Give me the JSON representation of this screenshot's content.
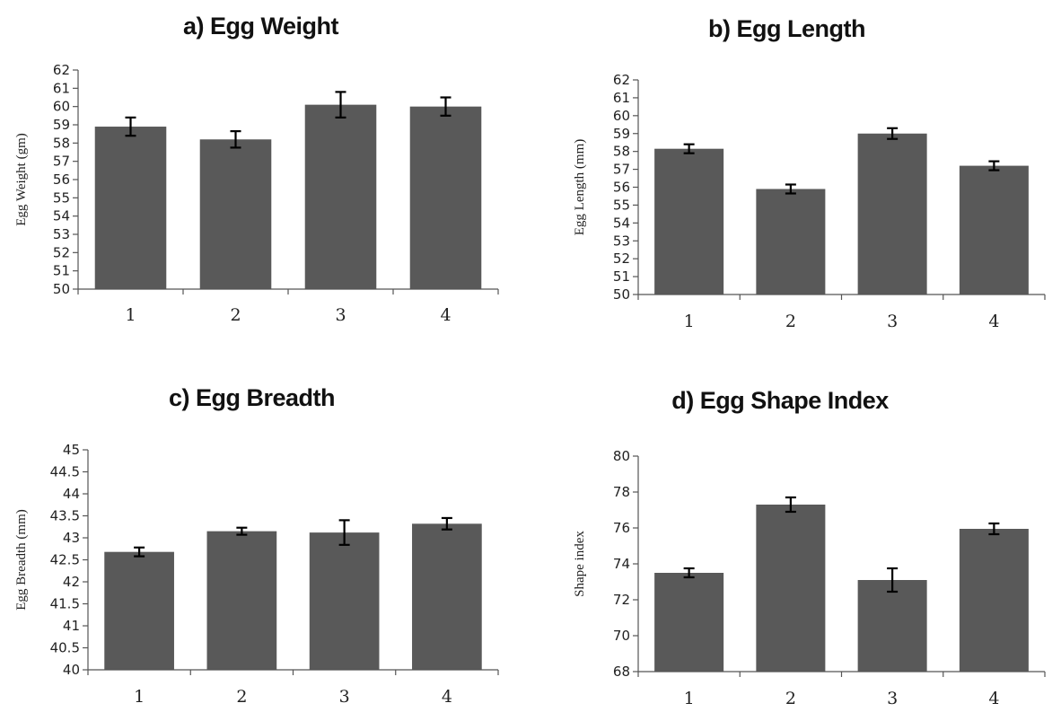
{
  "chart_data": [
    {
      "type": "bar",
      "title": "a) Egg Weight",
      "xlabel": "",
      "ylabel": "Egg Weight (gm)",
      "categories": [
        "1",
        "2",
        "3",
        "4"
      ],
      "values": [
        58.9,
        58.2,
        60.1,
        60.0
      ],
      "errors": [
        0.5,
        0.45,
        0.7,
        0.5
      ],
      "ylim": [
        50,
        62
      ],
      "yticks": [
        50,
        51,
        52,
        53,
        54,
        55,
        56,
        57,
        58,
        59,
        60,
        61,
        62
      ],
      "bar_color": "#595959"
    },
    {
      "type": "bar",
      "title": "b) Egg Length",
      "xlabel": "",
      "ylabel": "Egg Length (mm)",
      "categories": [
        "1",
        "2",
        "3",
        "4"
      ],
      "values": [
        58.15,
        55.9,
        59.0,
        57.2
      ],
      "errors": [
        0.25,
        0.25,
        0.3,
        0.25
      ],
      "ylim": [
        50,
        62
      ],
      "yticks": [
        50,
        51,
        52,
        53,
        54,
        55,
        56,
        57,
        58,
        59,
        60,
        61,
        62
      ],
      "bar_color": "#595959"
    },
    {
      "type": "bar",
      "title": "c) Egg Breadth",
      "xlabel": "",
      "ylabel": "Egg Breadth (mm)",
      "categories": [
        "1",
        "2",
        "3",
        "4"
      ],
      "values": [
        42.68,
        43.15,
        43.12,
        43.32
      ],
      "errors": [
        0.1,
        0.08,
        0.28,
        0.13
      ],
      "ylim": [
        40,
        45
      ],
      "yticks": [
        40,
        40.5,
        41,
        41.5,
        42,
        42.5,
        43,
        43.5,
        44,
        44.5,
        45
      ],
      "bar_color": "#595959"
    },
    {
      "type": "bar",
      "title": "d) Egg Shape Index",
      "xlabel": "",
      "ylabel": "Shape index",
      "categories": [
        "1",
        "2",
        "3",
        "4"
      ],
      "values": [
        73.5,
        77.3,
        73.1,
        75.95
      ],
      "errors": [
        0.25,
        0.4,
        0.65,
        0.3
      ],
      "ylim": [
        68,
        80
      ],
      "yticks": [
        68,
        70,
        72,
        74,
        76,
        78,
        80
      ],
      "bar_color": "#595959"
    }
  ]
}
